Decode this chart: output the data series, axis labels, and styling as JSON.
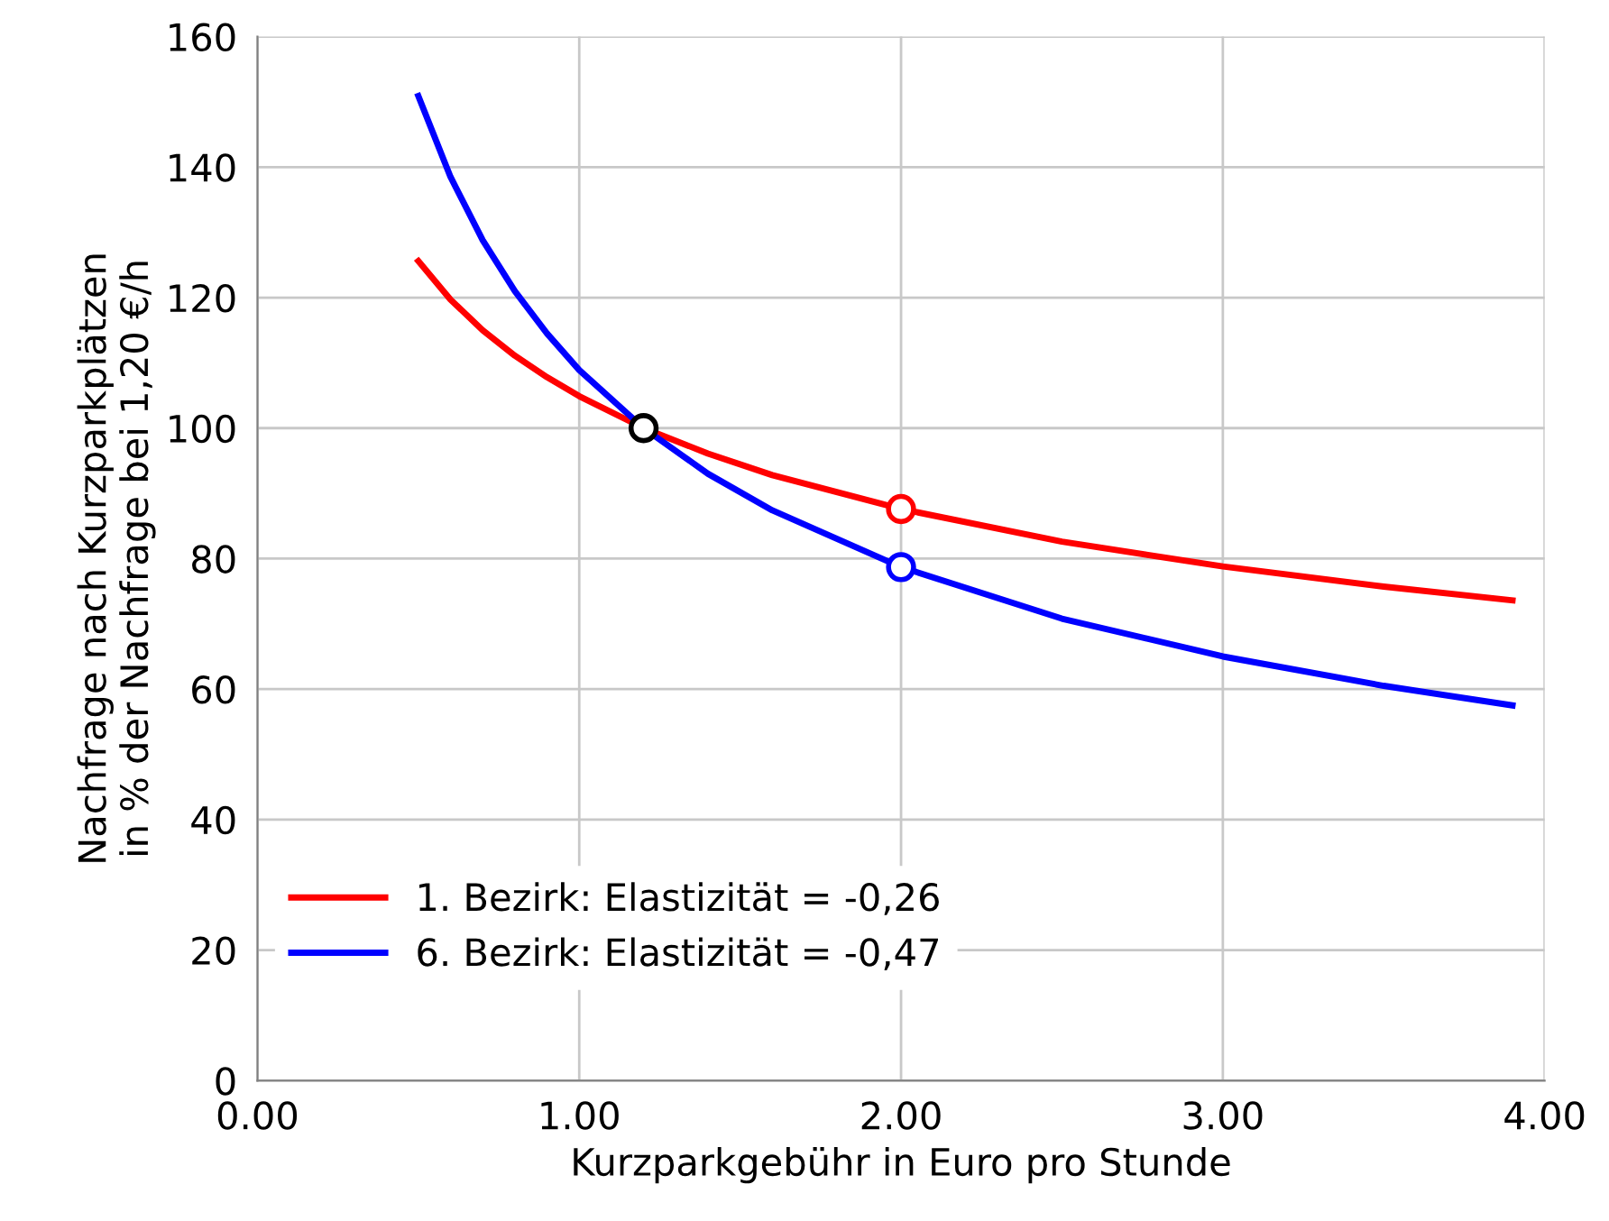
{
  "chart_data": {
    "type": "line",
    "xlabel": "Kurzparkgebühr in Euro pro Stunde",
    "ylabel": "Nachfrage nach Kurzparkplätzen\nin % der Nachfrage bei 1,20 €/h",
    "x": [
      0.5,
      0.6,
      0.7,
      0.8,
      0.9,
      1.0,
      1.2,
      1.4,
      1.6,
      2.0,
      2.5,
      3.0,
      3.5,
      3.9
    ],
    "series": [
      {
        "name": "1. Bezirk: Elastizität = -0,26",
        "color": "#ff0000",
        "values": [
          125.6,
          119.7,
          115.0,
          111.1,
          107.8,
          104.9,
          100,
          96.1,
          92.8,
          87.6,
          82.6,
          78.8,
          75.7,
          73.6
        ]
      },
      {
        "name": "6. Bezirk: Elastizität = -0,47",
        "color": "#0000ff",
        "values": [
          150.9,
          138.5,
          128.8,
          121.0,
          114.5,
          108.9,
          100,
          93.0,
          87.4,
          78.7,
          70.8,
          65.0,
          60.5,
          57.5
        ]
      },
      {
        "type": "scatter",
        "color": "#ff0000",
        "values": [
          null,
          null,
          null,
          null,
          null,
          null,
          null,
          null,
          null,
          87.6,
          null,
          null,
          null,
          null
        ],
        "marker": "circle"
      },
      {
        "type": "scatter",
        "color": "#0000ff",
        "values": [
          null,
          null,
          null,
          null,
          null,
          null,
          null,
          null,
          null,
          78.7,
          null,
          null,
          null,
          null
        ],
        "marker": "circle"
      },
      {
        "type": "scatter",
        "color": "#000000",
        "values": [
          null,
          null,
          null,
          null,
          null,
          null,
          100,
          null,
          null,
          null,
          null,
          null,
          null,
          null
        ],
        "marker": "circle"
      }
    ],
    "xlim": [
      0,
      4
    ],
    "xticks": [
      {
        "value": 0,
        "label": "0.00"
      },
      {
        "value": 1,
        "label": "1.00"
      },
      {
        "value": 2,
        "label": "2.00"
      },
      {
        "value": 3,
        "label": "3.00"
      },
      {
        "value": 4,
        "label": "4.00"
      }
    ],
    "ylim": [
      0,
      160
    ],
    "yticks": [
      0,
      20,
      40,
      60,
      80,
      100,
      120,
      140,
      160
    ],
    "grid": true,
    "legend": "bottom left",
    "marker": "none",
    "line_style": "solid"
  }
}
